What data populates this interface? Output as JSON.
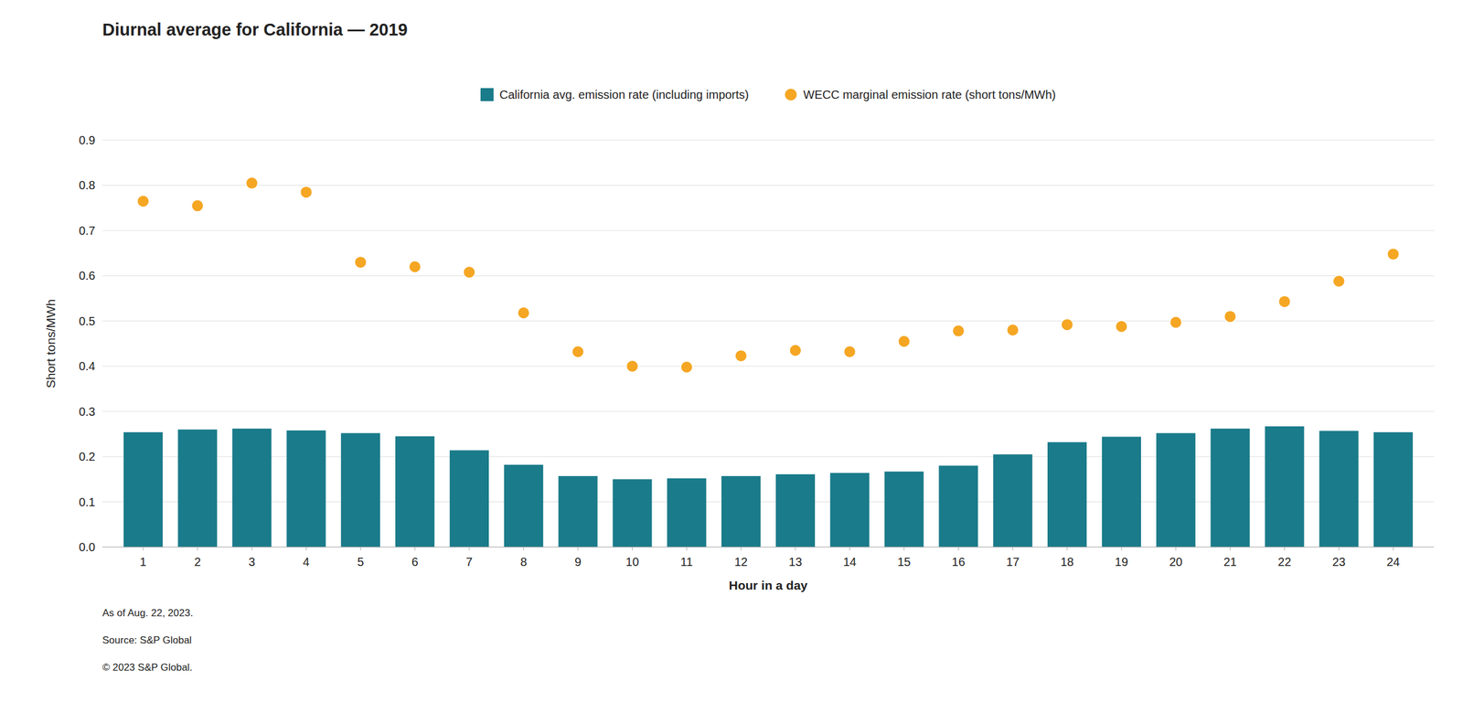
{
  "chart_data": {
    "type": "bar",
    "title": "Diurnal average for California — 2019",
    "xlabel": "Hour in a day",
    "ylabel": "Short tons/MWh",
    "x": [
      1,
      2,
      3,
      4,
      5,
      6,
      7,
      8,
      9,
      10,
      11,
      12,
      13,
      14,
      15,
      16,
      17,
      18,
      19,
      20,
      21,
      22,
      23,
      24
    ],
    "xlim": [
      0.25,
      24.75
    ],
    "xticks": [
      1,
      2,
      3,
      4,
      5,
      6,
      7,
      8,
      9,
      10,
      11,
      12,
      13,
      14,
      15,
      16,
      17,
      18,
      19,
      20,
      21,
      22,
      23,
      24
    ],
    "ylim": [
      0,
      0.9
    ],
    "yticks": [
      {
        "value": 0,
        "label": "0.0"
      },
      0.1,
      0.2,
      0.3,
      0.4,
      0.5,
      0.6,
      0.7,
      0.8,
      0.9
    ],
    "grid": true,
    "legend": "top",
    "series": [
      {
        "name": "California avg. emission rate (including imports)",
        "type": "bar",
        "color": "#1a7b8a",
        "values": [
          0.254,
          0.26,
          0.262,
          0.258,
          0.252,
          0.245,
          0.214,
          0.182,
          0.157,
          0.15,
          0.152,
          0.157,
          0.161,
          0.164,
          0.167,
          0.18,
          0.205,
          0.232,
          0.244,
          0.252,
          0.262,
          0.267,
          0.257,
          0.254
        ]
      },
      {
        "name": "WECC marginal emission rate (short tons/MWh)",
        "type": "scatter",
        "color": "#f5a623",
        "values": [
          0.765,
          0.755,
          0.805,
          0.785,
          0.63,
          0.62,
          0.608,
          0.518,
          0.432,
          0.4,
          0.398,
          0.423,
          0.435,
          0.432,
          0.455,
          0.478,
          0.48,
          0.492,
          0.488,
          0.497,
          0.51,
          0.543,
          0.588,
          0.648
        ]
      }
    ],
    "annotations": [
      "As of Aug. 22, 2023.",
      "Source: S&P Global",
      "© 2023 S&P Global."
    ]
  }
}
